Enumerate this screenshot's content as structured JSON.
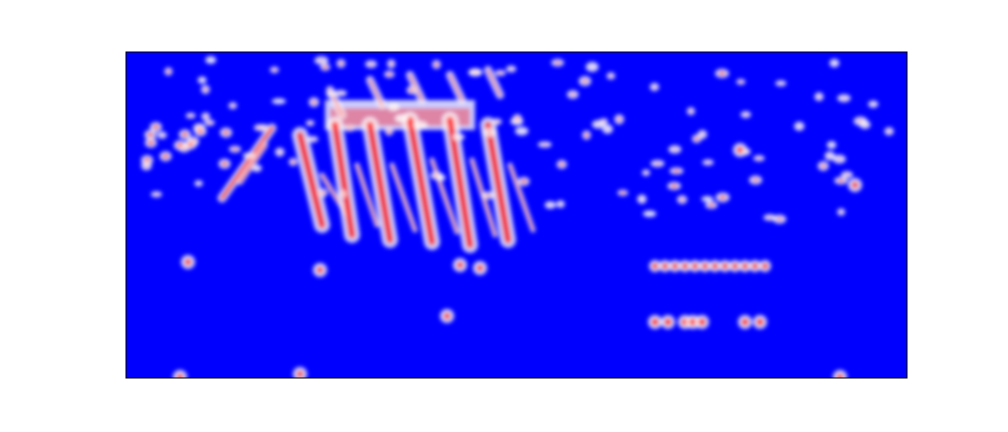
{
  "chart_data": {
    "type": "heatmap",
    "background_color": "#0000ff",
    "low_color": "#ffffff",
    "high_color": "#ff0000"
  }
}
